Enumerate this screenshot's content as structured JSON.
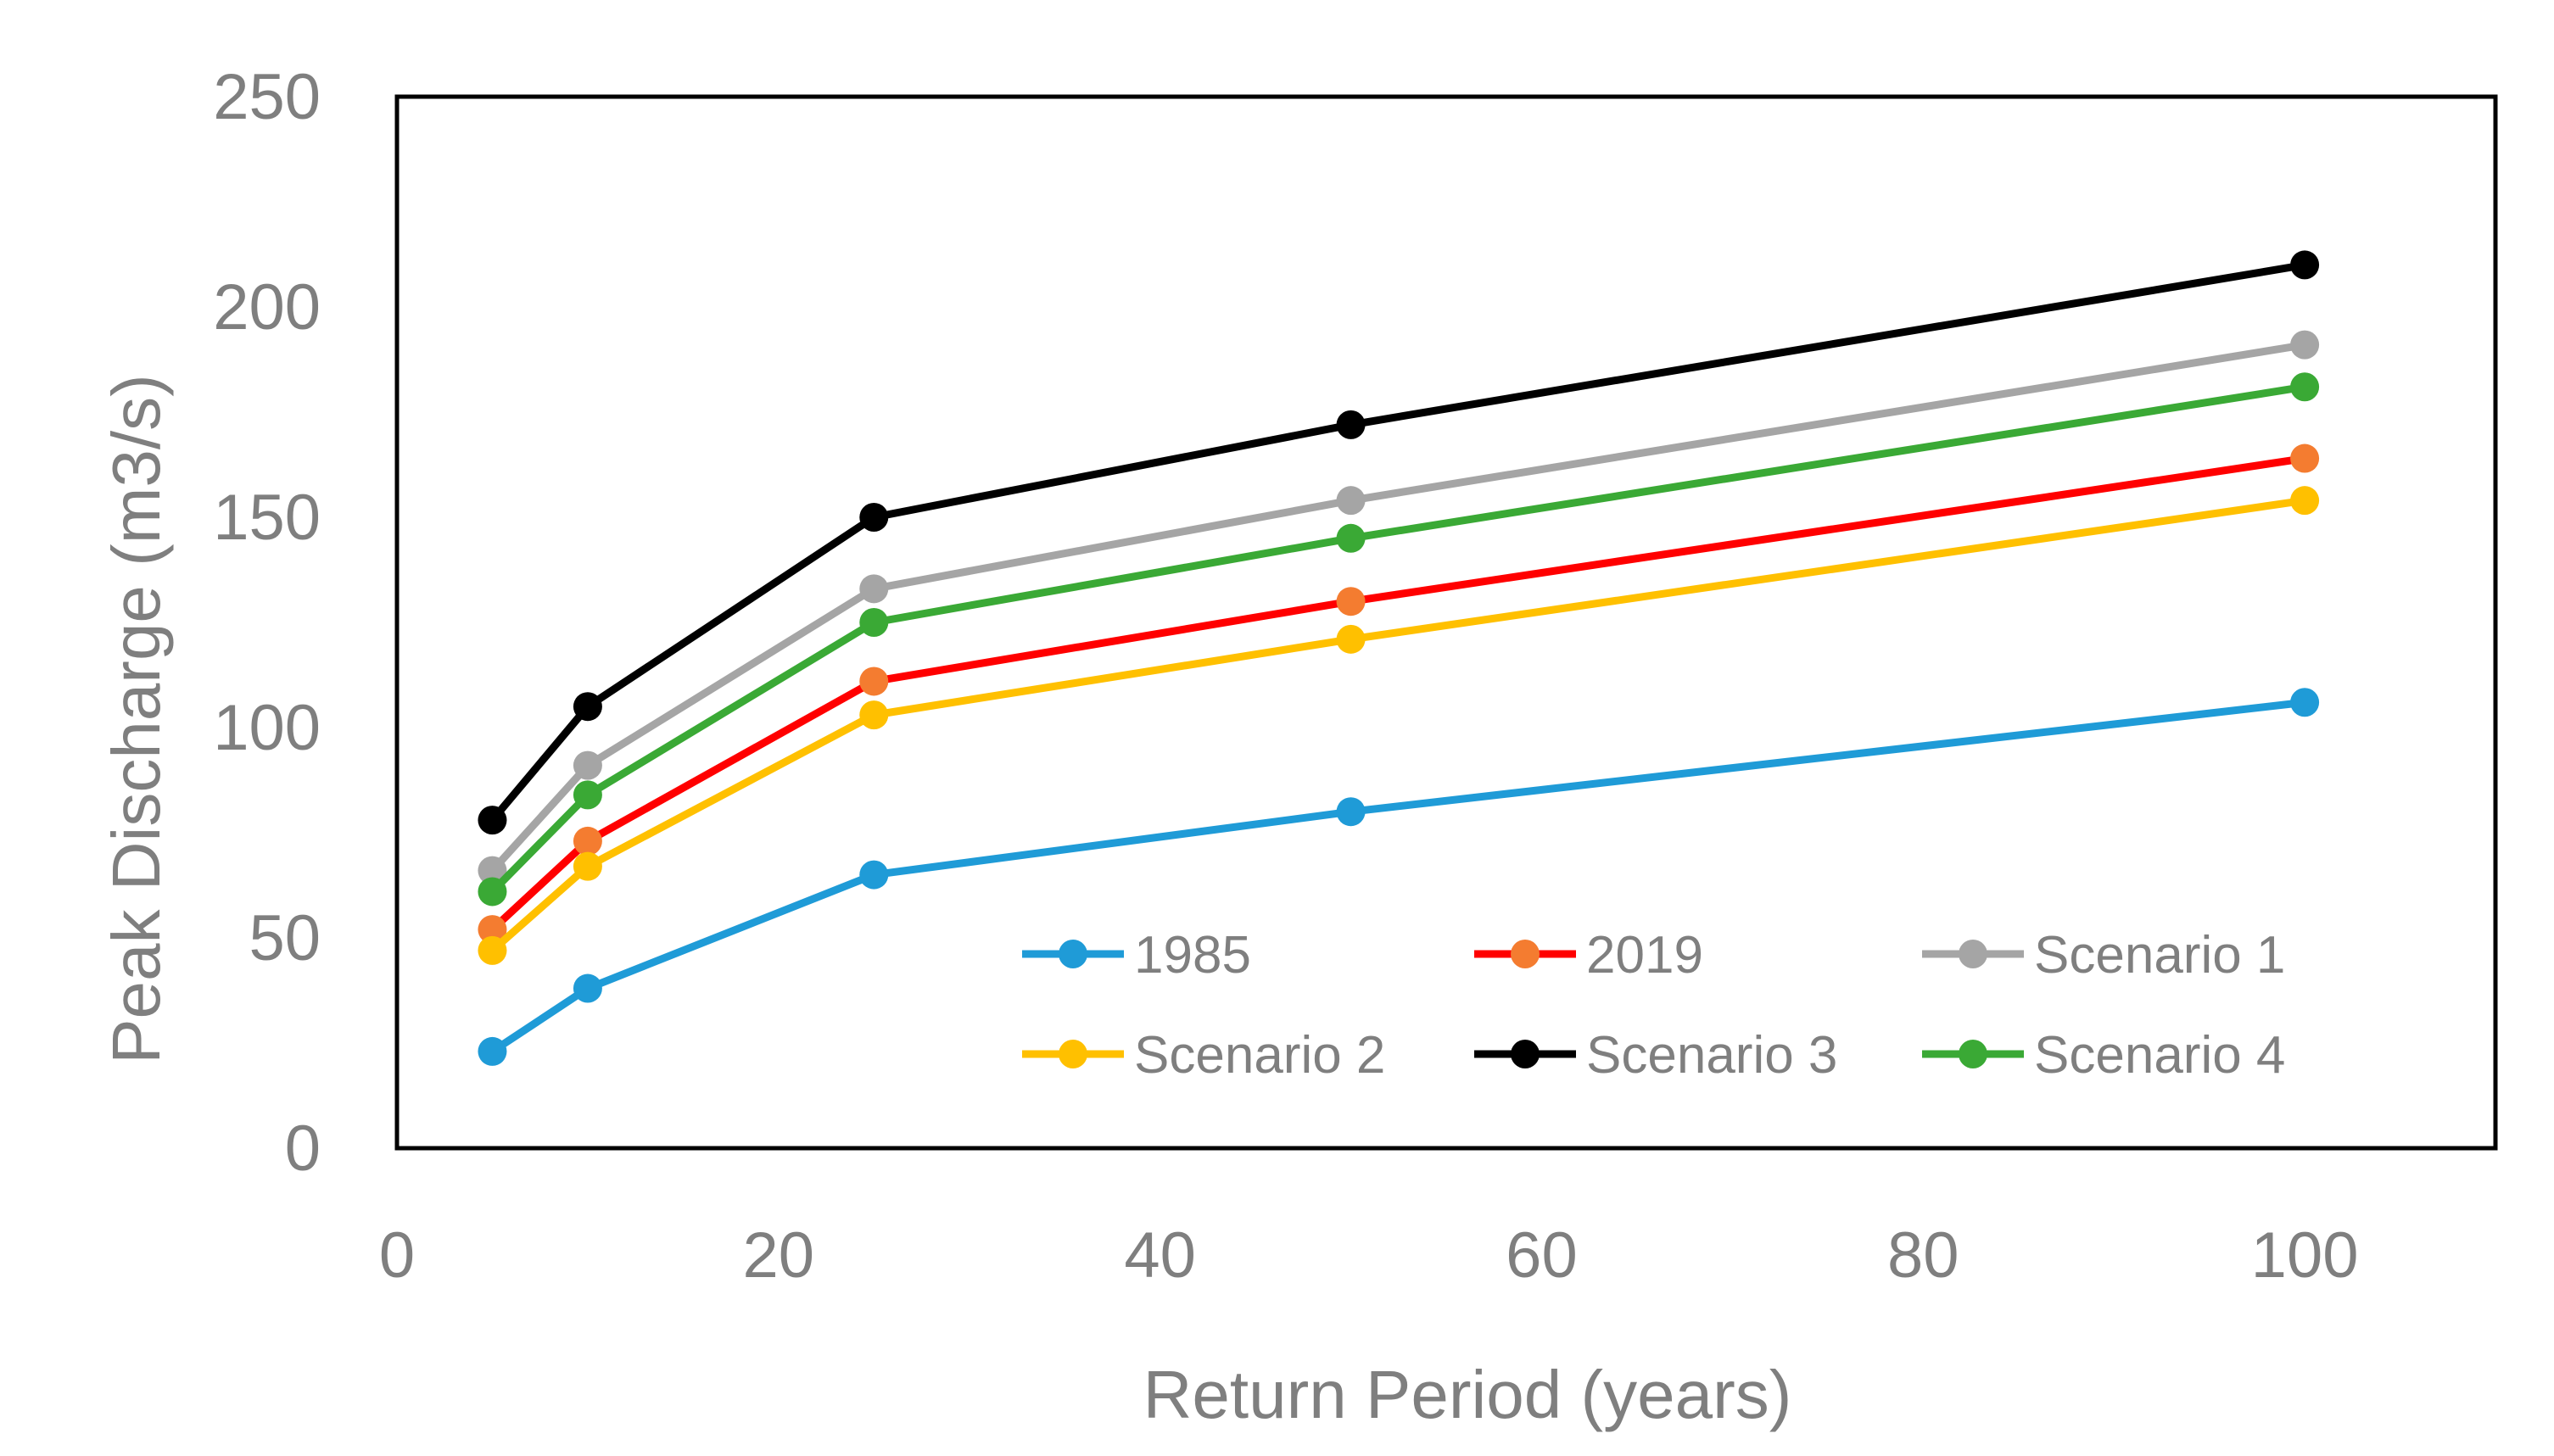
{
  "chart_data": {
    "type": "line",
    "title": "",
    "xlabel": "Return Period (years)",
    "ylabel": "Peak Discharge (m3/s)",
    "xlim": [
      0,
      110
    ],
    "ylim": [
      0,
      250
    ],
    "xticks": [
      0,
      20,
      40,
      60,
      80,
      100
    ],
    "yticks": [
      0,
      50,
      100,
      150,
      200,
      250
    ],
    "grid": false,
    "legend_position": "bottom-right inside plot, two rows",
    "x": [
      5,
      10,
      25,
      50,
      100
    ],
    "series": [
      {
        "name": "1985",
        "color": "#1f9bd7",
        "values": [
          23,
          38,
          65,
          80,
          106
        ]
      },
      {
        "name": "2019",
        "color": "#ff0000",
        "marker_color": "#f47c30",
        "values": [
          52,
          73,
          111,
          130,
          164
        ]
      },
      {
        "name": "Scenario 1",
        "color": "#a5a5a5",
        "values": [
          66,
          91,
          133,
          154,
          191
        ]
      },
      {
        "name": "Scenario 2",
        "color": "#ffc000",
        "values": [
          47,
          67,
          103,
          121,
          154
        ]
      },
      {
        "name": "Scenario 3",
        "color": "#000000",
        "values": [
          78,
          105,
          150,
          172,
          210
        ]
      },
      {
        "name": "Scenario 4",
        "color": "#3aa935",
        "values": [
          61,
          84,
          125,
          145,
          181
        ]
      }
    ]
  }
}
